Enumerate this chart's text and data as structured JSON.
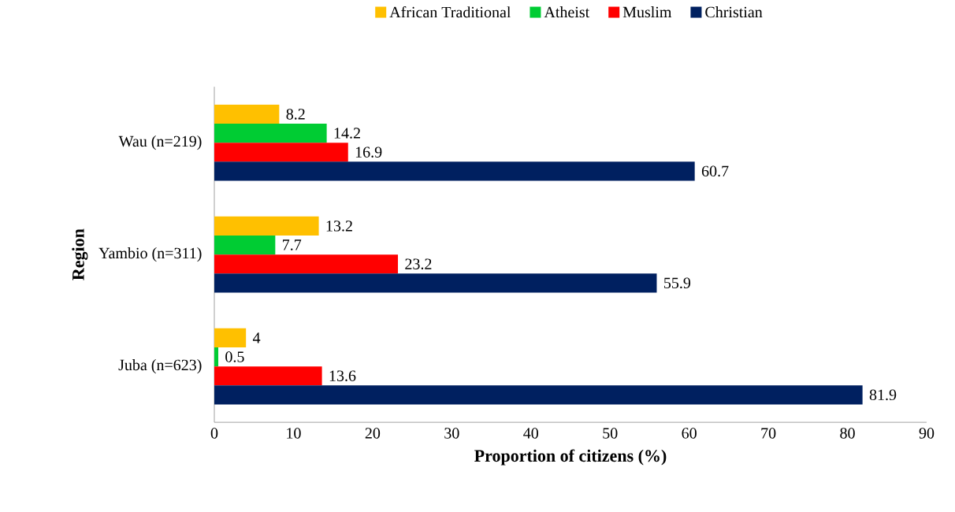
{
  "chart_data": {
    "type": "bar",
    "orientation": "horizontal",
    "xlabel": "Proportion of citizens (%)",
    "ylabel": "Region",
    "categories": [
      "Wau (n=219)",
      "Yambio (n=311)",
      "Juba (n=623)"
    ],
    "series": [
      {
        "name": "African Traditional",
        "color": "#ffc000",
        "values": [
          8.2,
          13.2,
          4
        ]
      },
      {
        "name": "Atheist",
        "color": "#00cc33",
        "values": [
          14.2,
          7.7,
          0.5
        ]
      },
      {
        "name": "Muslim",
        "color": "#ff0000",
        "values": [
          16.9,
          23.2,
          13.6
        ]
      },
      {
        "name": "Christian",
        "color": "#002060",
        "values": [
          60.7,
          55.9,
          81.9
        ]
      }
    ],
    "xlim": [
      0,
      90
    ],
    "xticks": [
      0,
      10,
      20,
      30,
      40,
      50,
      60,
      70,
      80,
      90
    ],
    "data_labels": true,
    "legend": "top",
    "grid": false
  }
}
